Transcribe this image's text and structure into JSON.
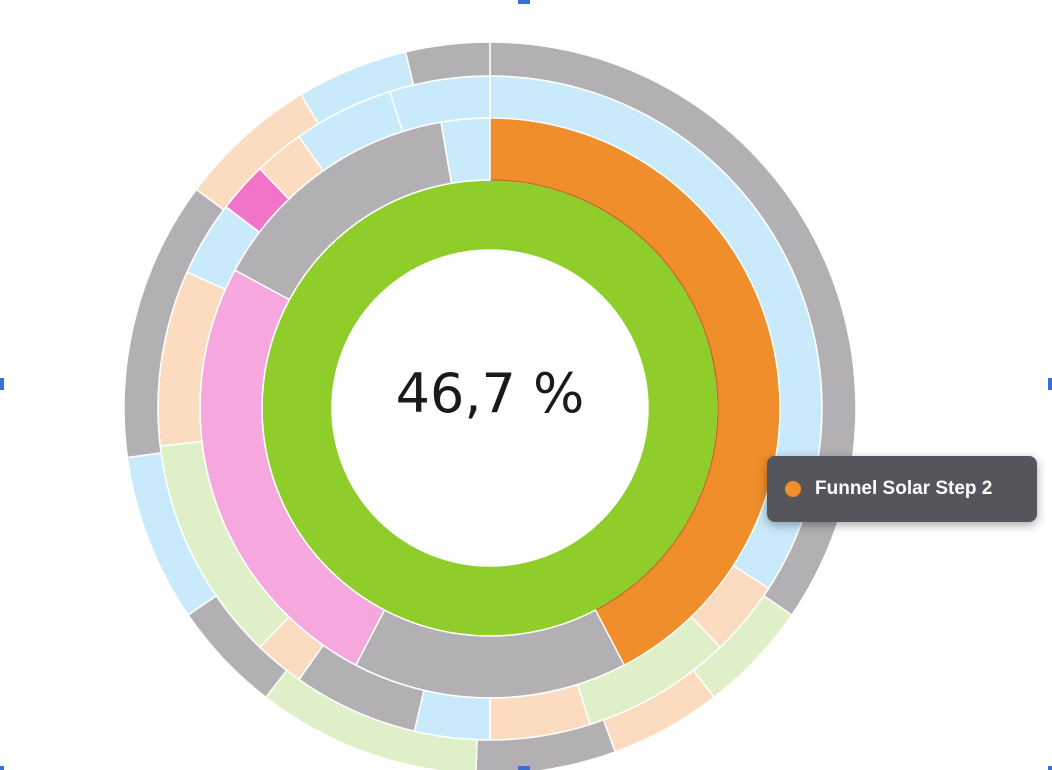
{
  "center_text": "46,7 %",
  "tooltip": {
    "label": "Funnel Solar Step 2",
    "dot_color": "#f08e2c"
  },
  "colors": {
    "green": "#8fcd2a",
    "orange": "#f08e2c",
    "pink": "#f6a8de",
    "gray": "#b2b0b3",
    "light_blue": "#c8eafb",
    "peach": "#fcdcc0",
    "light_green": "#dfefc8",
    "mint": "#d2f6ea",
    "magenta": "#f274c8"
  },
  "chart_data": {
    "type": "sunburst",
    "center_value": "46,7 %",
    "highlighted": "Funnel Solar Step 2",
    "rings": [
      {
        "level": 1,
        "segments": [
          {
            "color": "green",
            "value": 100
          }
        ]
      },
      {
        "level": 2,
        "segments": [
          {
            "color": "orange",
            "value": 47
          },
          {
            "color": "gray",
            "value": 17
          },
          {
            "color": "pink",
            "value": 28
          },
          {
            "color": "gray",
            "value": 16
          },
          {
            "color": "light_blue",
            "value": 3
          }
        ]
      },
      {
        "level": 3,
        "segments": [
          {
            "color": "light_blue",
            "value": 28
          },
          {
            "color": "peach",
            "value": 3
          },
          {
            "color": "light_green",
            "value": 6
          },
          {
            "color": "peach",
            "value": 4
          },
          {
            "color": "light_blue",
            "value": 3
          },
          {
            "color": "gray",
            "value": 5
          },
          {
            "color": "peach",
            "value": 2
          },
          {
            "color": "light_green",
            "value": 9
          },
          {
            "color": "peach",
            "value": 7
          },
          {
            "color": "light_blue",
            "value": 3
          },
          {
            "color": "magenta",
            "value": 2
          },
          {
            "color": "peach",
            "value": 2
          },
          {
            "color": "light_blue",
            "value": 4
          },
          {
            "color": "light_blue",
            "value": 4
          }
        ]
      },
      {
        "level": 4,
        "segments": [
          {
            "color": "gray",
            "value": 28
          },
          {
            "color": "light_green",
            "value": 4
          },
          {
            "color": "peach",
            "value": 4
          },
          {
            "color": "gray",
            "value": 5
          },
          {
            "color": "light_green",
            "value": 8
          },
          {
            "color": "gray",
            "value": 4
          },
          {
            "color": "light_blue",
            "value": 6
          },
          {
            "color": "gray",
            "value": 10
          },
          {
            "color": "peach",
            "value": 5
          },
          {
            "color": "light_blue",
            "value": 4
          },
          {
            "color": "gray",
            "value": 3
          }
        ]
      }
    ]
  }
}
